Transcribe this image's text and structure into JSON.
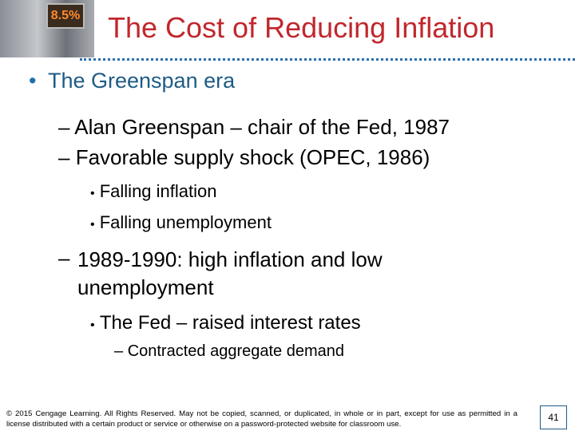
{
  "slide": {
    "photo": {
      "sign_text": "8.5%"
    },
    "title": "The Cost of Reducing Inflation",
    "bullets": [
      {
        "text": "The Greenspan era",
        "items": [
          {
            "text": "Alan Greenspan – chair of the Fed, 1987"
          },
          {
            "text": "Favorable supply shock (OPEC, 1986)",
            "items": [
              {
                "text": "Falling inflation"
              },
              {
                "text": "Falling unemployment"
              }
            ]
          },
          {
            "text": "1989-1990: high inflation and low unemployment",
            "items": [
              {
                "text": "The Fed – raised interest rates",
                "items": [
                  {
                    "text": "Contracted aggregate demand"
                  }
                ]
              }
            ]
          }
        ]
      }
    ],
    "footer": "© 2015 Cengage Learning. All Rights Reserved. May not be copied, scanned, or duplicated, in whole or in part, except for use as permitted in a license distributed with a certain product or service or otherwise on a password-protected website for classroom use.",
    "page_number": "41"
  }
}
